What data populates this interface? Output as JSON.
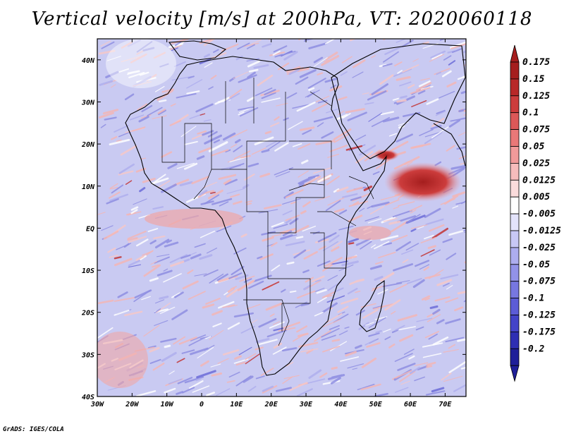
{
  "title": "Vertical velocity [m/s] at 200hPa, VT: 2020060118",
  "credit": "GrADS: IGES/COLA",
  "map": {
    "lon_range": [
      -30,
      76
    ],
    "lat_range": [
      -40,
      45
    ],
    "lon_ticks": [
      {
        "value": -30,
        "label": "30W"
      },
      {
        "value": -20,
        "label": "20W"
      },
      {
        "value": -10,
        "label": "10W"
      },
      {
        "value": 0,
        "label": "0"
      },
      {
        "value": 10,
        "label": "10E"
      },
      {
        "value": 20,
        "label": "20E"
      },
      {
        "value": 30,
        "label": "30E"
      },
      {
        "value": 40,
        "label": "40E"
      },
      {
        "value": 50,
        "label": "50E"
      },
      {
        "value": 60,
        "label": "60E"
      },
      {
        "value": 70,
        "label": "70E"
      }
    ],
    "lat_ticks": [
      {
        "value": 40,
        "label": "40N"
      },
      {
        "value": 30,
        "label": "30N"
      },
      {
        "value": 20,
        "label": "20N"
      },
      {
        "value": 10,
        "label": "10N"
      },
      {
        "value": 0,
        "label": "EQ"
      },
      {
        "value": -10,
        "label": "10S"
      },
      {
        "value": -20,
        "label": "20S"
      },
      {
        "value": -30,
        "label": "30S"
      },
      {
        "value": -40,
        "label": "40S"
      }
    ]
  },
  "colorbar": {
    "levels": [
      {
        "label": "0.175",
        "color": "#a51e1e"
      },
      {
        "label": "0.15",
        "color": "#b82828"
      },
      {
        "label": "0.125",
        "color": "#cc3c3c"
      },
      {
        "label": "0.1",
        "color": "#dc5858"
      },
      {
        "label": "0.075",
        "color": "#e97878"
      },
      {
        "label": "0.05",
        "color": "#f19a9a"
      },
      {
        "label": "0.025",
        "color": "#f7bcbc"
      },
      {
        "label": "0.0125",
        "color": "#fbdcdc"
      },
      {
        "label": "0.005",
        "color": "#ffffff"
      },
      {
        "label": "-0.005",
        "color": "#e3e3fb"
      },
      {
        "label": "-0.0125",
        "color": "#c8c8f5"
      },
      {
        "label": "-0.025",
        "color": "#adadef"
      },
      {
        "label": "-0.05",
        "color": "#9292e8"
      },
      {
        "label": "-0.075",
        "color": "#7777e0"
      },
      {
        "label": "-0.1",
        "color": "#5c5cd6"
      },
      {
        "label": "-0.125",
        "color": "#4343c8"
      },
      {
        "label": "-0.175",
        "color": "#2e2eb3"
      },
      {
        "label": "-0.2",
        "color": "#1f1f99"
      }
    ],
    "top_color": "#a51e1e",
    "bottom_color": "#1f1f99"
  },
  "colors": {
    "base": "#c9caf2",
    "warm": "#f3b7b7",
    "cool": "#8f8fe2",
    "strong_warm": "#c23434",
    "border": "#000000"
  }
}
